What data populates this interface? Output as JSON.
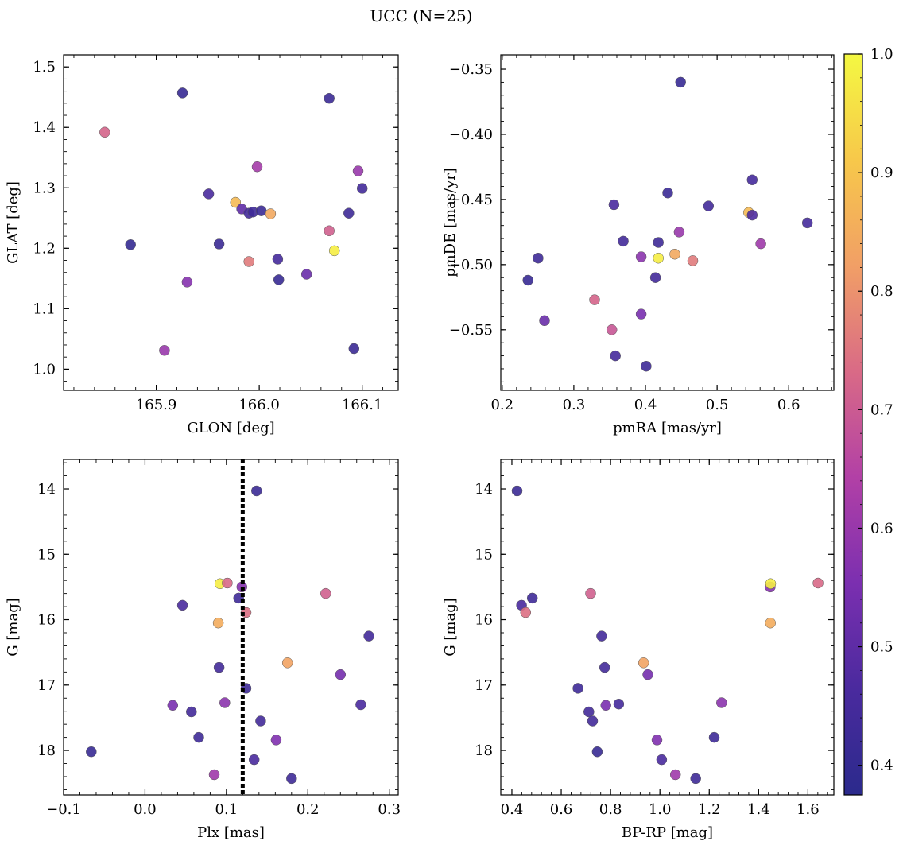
{
  "figure": {
    "title": "UCC (N=25)"
  },
  "colormap": {
    "name": "plasma",
    "stops": [
      "#2b2a8c",
      "#4a2a9e",
      "#7b2fb0",
      "#b240a6",
      "#d96a86",
      "#f19f66",
      "#f7c84a",
      "#f4f842"
    ],
    "range": [
      0.375,
      1.0
    ]
  },
  "colorbar": {
    "ticks": [
      "0.4",
      "0.5",
      "0.6",
      "0.7",
      "0.8",
      "0.9",
      "1.0"
    ],
    "tick_values": [
      0.4,
      0.5,
      0.6,
      0.7,
      0.8,
      0.9,
      1.0
    ]
  },
  "chart_data": [
    {
      "type": "scatter",
      "xlabel": "GLON [deg]",
      "ylabel": "GLAT [deg]",
      "xlim": [
        165.81,
        166.135
      ],
      "ylim": [
        0.965,
        1.52
      ],
      "xticks": [
        165.9,
        166.0,
        166.1
      ],
      "xtick_labels": [
        "165.9",
        "166.0",
        "166.1"
      ],
      "yticks": [
        1.0,
        1.1,
        1.2,
        1.3,
        1.4,
        1.5
      ],
      "ytick_labels": [
        "1.0",
        "1.1",
        "1.2",
        "1.3",
        "1.4",
        "1.5"
      ],
      "y_inverted": false,
      "points": [
        {
          "x": 165.875,
          "y": 1.206,
          "c": 0.4
        },
        {
          "x": 165.9255,
          "y": 1.457,
          "c": 0.41
        },
        {
          "x": 165.85,
          "y": 1.392,
          "c": 0.72
        },
        {
          "x": 165.93,
          "y": 1.144,
          "c": 0.57
        },
        {
          "x": 165.908,
          "y": 1.031,
          "c": 0.6
        },
        {
          "x": 165.951,
          "y": 1.29,
          "c": 0.46
        },
        {
          "x": 165.961,
          "y": 1.207,
          "c": 0.42
        },
        {
          "x": 165.977,
          "y": 1.276,
          "c": 0.88
        },
        {
          "x": 165.983,
          "y": 1.265,
          "c": 0.5
        },
        {
          "x": 165.99,
          "y": 1.258,
          "c": 0.44
        },
        {
          "x": 165.994,
          "y": 1.26,
          "c": 0.43
        },
        {
          "x": 166.002,
          "y": 1.262,
          "c": 0.42
        },
        {
          "x": 165.99,
          "y": 1.178,
          "c": 0.76
        },
        {
          "x": 165.998,
          "y": 1.335,
          "c": 0.62
        },
        {
          "x": 166.011,
          "y": 1.257,
          "c": 0.84
        },
        {
          "x": 166.018,
          "y": 1.182,
          "c": 0.45
        },
        {
          "x": 166.019,
          "y": 1.148,
          "c": 0.41
        },
        {
          "x": 166.046,
          "y": 1.157,
          "c": 0.52
        },
        {
          "x": 166.068,
          "y": 1.448,
          "c": 0.42
        },
        {
          "x": 166.068,
          "y": 1.229,
          "c": 0.71
        },
        {
          "x": 166.073,
          "y": 1.196,
          "c": 0.98
        },
        {
          "x": 166.087,
          "y": 1.258,
          "c": 0.43
        },
        {
          "x": 166.092,
          "y": 1.034,
          "c": 0.42
        },
        {
          "x": 166.096,
          "y": 1.328,
          "c": 0.6
        },
        {
          "x": 166.1,
          "y": 1.299,
          "c": 0.44
        }
      ]
    },
    {
      "type": "scatter",
      "xlabel": "pmRA [mas/yr]",
      "ylabel": "pmDE [mas/yr]",
      "xlim": [
        0.198,
        0.663
      ],
      "ylim": [
        -0.5965,
        -0.339
      ],
      "xticks": [
        0.2,
        0.3,
        0.4,
        0.5,
        0.6
      ],
      "xtick_labels": [
        "0.2",
        "0.3",
        "0.4",
        "0.5",
        "0.6"
      ],
      "yticks": [
        -0.55,
        -0.5,
        -0.45,
        -0.4,
        -0.35
      ],
      "ytick_labels": [
        "−0.55",
        "−0.50",
        "−0.45",
        "−0.40",
        "−0.35"
      ],
      "y_inverted": false,
      "points": [
        {
          "x": 0.236,
          "y": -0.512,
          "c": 0.41
        },
        {
          "x": 0.25,
          "y": -0.495,
          "c": 0.43
        },
        {
          "x": 0.259,
          "y": -0.543,
          "c": 0.52
        },
        {
          "x": 0.329,
          "y": -0.527,
          "c": 0.72
        },
        {
          "x": 0.353,
          "y": -0.55,
          "c": 0.69
        },
        {
          "x": 0.356,
          "y": -0.454,
          "c": 0.46
        },
        {
          "x": 0.358,
          "y": -0.57,
          "c": 0.45
        },
        {
          "x": 0.369,
          "y": -0.482,
          "c": 0.44
        },
        {
          "x": 0.394,
          "y": -0.494,
          "c": 0.58
        },
        {
          "x": 0.394,
          "y": -0.538,
          "c": 0.55
        },
        {
          "x": 0.401,
          "y": -0.578,
          "c": 0.43
        },
        {
          "x": 0.414,
          "y": -0.51,
          "c": 0.44
        },
        {
          "x": 0.418,
          "y": -0.483,
          "c": 0.43
        },
        {
          "x": 0.418,
          "y": -0.495,
          "c": 0.98
        },
        {
          "x": 0.431,
          "y": -0.445,
          "c": 0.42
        },
        {
          "x": 0.441,
          "y": -0.492,
          "c": 0.84
        },
        {
          "x": 0.447,
          "y": -0.475,
          "c": 0.6
        },
        {
          "x": 0.449,
          "y": -0.36,
          "c": 0.41
        },
        {
          "x": 0.466,
          "y": -0.497,
          "c": 0.76
        },
        {
          "x": 0.488,
          "y": -0.455,
          "c": 0.44
        },
        {
          "x": 0.544,
          "y": -0.46,
          "c": 0.88
        },
        {
          "x": 0.549,
          "y": -0.435,
          "c": 0.45
        },
        {
          "x": 0.549,
          "y": -0.462,
          "c": 0.47
        },
        {
          "x": 0.561,
          "y": -0.484,
          "c": 0.61
        },
        {
          "x": 0.626,
          "y": -0.468,
          "c": 0.45
        }
      ]
    },
    {
      "type": "scatter",
      "xlabel": "Plx [mas]",
      "ylabel": "G [mag]",
      "xlim": [
        -0.1,
        0.311
      ],
      "ylim": [
        13.55,
        18.68
      ],
      "xticks": [
        -0.1,
        0.0,
        0.1,
        0.2,
        0.3
      ],
      "xtick_labels": [
        "−0.1",
        "0.0",
        "0.1",
        "0.2",
        "0.3"
      ],
      "yticks": [
        14,
        15,
        16,
        17,
        18
      ],
      "ytick_labels": [
        "14",
        "15",
        "16",
        "17",
        "18"
      ],
      "y_inverted": true,
      "vline": 0.12,
      "points": [
        {
          "x": -0.066,
          "y": 18.02,
          "c": 0.41
        },
        {
          "x": 0.034,
          "y": 17.31,
          "c": 0.55
        },
        {
          "x": 0.046,
          "y": 15.78,
          "c": 0.46
        },
        {
          "x": 0.057,
          "y": 17.41,
          "c": 0.44
        },
        {
          "x": 0.066,
          "y": 17.8,
          "c": 0.43
        },
        {
          "x": 0.085,
          "y": 18.37,
          "c": 0.61
        },
        {
          "x": 0.09,
          "y": 16.05,
          "c": 0.85
        },
        {
          "x": 0.091,
          "y": 16.73,
          "c": 0.44
        },
        {
          "x": 0.092,
          "y": 15.45,
          "c": 0.98
        },
        {
          "x": 0.098,
          "y": 17.27,
          "c": 0.58
        },
        {
          "x": 0.101,
          "y": 15.44,
          "c": 0.73
        },
        {
          "x": 0.115,
          "y": 15.67,
          "c": 0.43
        },
        {
          "x": 0.119,
          "y": 15.5,
          "c": 0.57
        },
        {
          "x": 0.124,
          "y": 15.89,
          "c": 0.74
        },
        {
          "x": 0.124,
          "y": 17.05,
          "c": 0.43
        },
        {
          "x": 0.134,
          "y": 18.14,
          "c": 0.46
        },
        {
          "x": 0.137,
          "y": 14.03,
          "c": 0.42
        },
        {
          "x": 0.142,
          "y": 17.55,
          "c": 0.44
        },
        {
          "x": 0.161,
          "y": 17.84,
          "c": 0.56
        },
        {
          "x": 0.175,
          "y": 16.66,
          "c": 0.83
        },
        {
          "x": 0.18,
          "y": 18.43,
          "c": 0.43
        },
        {
          "x": 0.222,
          "y": 15.6,
          "c": 0.71
        },
        {
          "x": 0.24,
          "y": 16.84,
          "c": 0.54
        },
        {
          "x": 0.265,
          "y": 17.3,
          "c": 0.46
        },
        {
          "x": 0.275,
          "y": 16.25,
          "c": 0.44
        }
      ]
    },
    {
      "type": "scatter",
      "xlabel": "BP-RP [mag]",
      "ylabel": "G [mag]",
      "xlim": [
        0.355,
        1.705
      ],
      "ylim": [
        13.55,
        18.68
      ],
      "xticks": [
        0.4,
        0.6,
        0.8,
        1.0,
        1.2,
        1.4,
        1.6
      ],
      "xtick_labels": [
        "0.4",
        "0.6",
        "0.8",
        "1.0",
        "1.2",
        "1.4",
        "1.6"
      ],
      "yticks": [
        14,
        15,
        16,
        17,
        18
      ],
      "ytick_labels": [
        "14",
        "15",
        "16",
        "17",
        "18"
      ],
      "y_inverted": true,
      "points": [
        {
          "x": 0.421,
          "y": 14.03,
          "c": 0.42
        },
        {
          "x": 0.439,
          "y": 15.78,
          "c": 0.46
        },
        {
          "x": 0.456,
          "y": 15.89,
          "c": 0.74
        },
        {
          "x": 0.483,
          "y": 15.67,
          "c": 0.43
        },
        {
          "x": 0.668,
          "y": 17.05,
          "c": 0.43
        },
        {
          "x": 0.712,
          "y": 17.41,
          "c": 0.44
        },
        {
          "x": 0.719,
          "y": 15.6,
          "c": 0.71
        },
        {
          "x": 0.727,
          "y": 17.55,
          "c": 0.44
        },
        {
          "x": 0.746,
          "y": 18.02,
          "c": 0.41
        },
        {
          "x": 0.764,
          "y": 16.25,
          "c": 0.44
        },
        {
          "x": 0.776,
          "y": 16.73,
          "c": 0.44
        },
        {
          "x": 0.781,
          "y": 17.31,
          "c": 0.55
        },
        {
          "x": 0.833,
          "y": 17.29,
          "c": 0.45
        },
        {
          "x": 0.934,
          "y": 16.66,
          "c": 0.83
        },
        {
          "x": 0.951,
          "y": 16.84,
          "c": 0.54
        },
        {
          "x": 0.988,
          "y": 17.84,
          "c": 0.56
        },
        {
          "x": 1.007,
          "y": 18.14,
          "c": 0.46
        },
        {
          "x": 1.063,
          "y": 18.37,
          "c": 0.61
        },
        {
          "x": 1.145,
          "y": 18.43,
          "c": 0.43
        },
        {
          "x": 1.22,
          "y": 17.8,
          "c": 0.43
        },
        {
          "x": 1.25,
          "y": 17.27,
          "c": 0.58
        },
        {
          "x": 1.447,
          "y": 15.5,
          "c": 0.57
        },
        {
          "x": 1.448,
          "y": 16.05,
          "c": 0.85
        },
        {
          "x": 1.449,
          "y": 15.45,
          "c": 0.98
        },
        {
          "x": 1.641,
          "y": 15.44,
          "c": 0.73
        }
      ]
    }
  ]
}
